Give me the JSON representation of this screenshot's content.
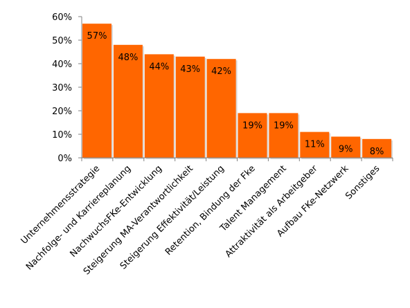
{
  "chart_data": {
    "type": "bar",
    "categories": [
      "Unternehmensstrategie",
      "Nachfolge- und Karriereplanung",
      "NachwuchsFKe-Entwicklung",
      "Steigerung MA-Verantwortlichkeit",
      "Steigerung Effektivität/Leistung",
      "Retention, Bindung der Fke",
      "Talent Management",
      "Attraktivität als Arbeitgeber",
      "Aufbau FKe-Netzwerk",
      "Sonstiges"
    ],
    "values": [
      57,
      48,
      44,
      43,
      42,
      19,
      19,
      11,
      9,
      8
    ],
    "data_labels": [
      "57%",
      "48%",
      "44%",
      "43%",
      "42%",
      "19%",
      "19%",
      "11%",
      "9%",
      "8%"
    ],
    "y_ticks": [
      "0%",
      "10%",
      "20%",
      "30%",
      "40%",
      "50%",
      "60%"
    ],
    "ylim": [
      0,
      60
    ],
    "bar_color": "#FF6600",
    "title": "",
    "xlabel": "",
    "ylabel": "",
    "grid": false,
    "legend": "none"
  }
}
